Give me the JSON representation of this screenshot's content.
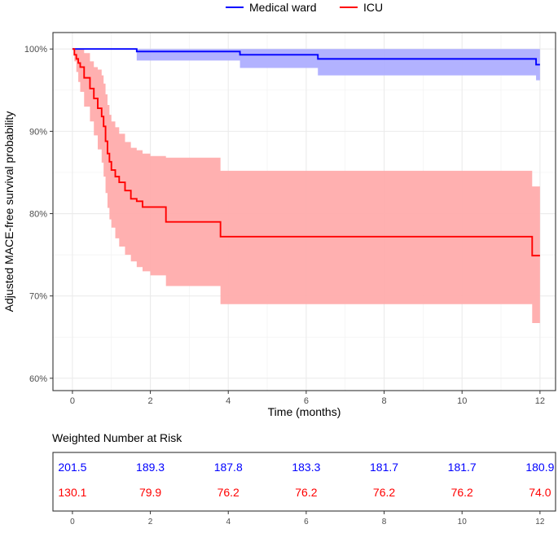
{
  "chart_data": [
    {
      "type": "line",
      "chart_style": "kaplan-meier step curves with shaded confidence bands",
      "xlabel": "Time (months)",
      "ylabel": "Adjusted MACE-free survival probability",
      "xlim": [
        -0.5,
        12.4
      ],
      "ylim": [
        0.585,
        1.02
      ],
      "x_ticks": [
        0,
        2,
        4,
        6,
        8,
        10,
        12
      ],
      "x_tick_labels": [
        "0",
        "2",
        "4",
        "6",
        "8",
        "10",
        "12"
      ],
      "y_ticks": [
        0.6,
        0.7,
        0.8,
        0.9,
        1.0
      ],
      "y_tick_labels": [
        "60%",
        "70%",
        "80%",
        "90%",
        "100%"
      ],
      "grid": true,
      "legend_position": "top",
      "series": [
        {
          "name": "Medical ward",
          "color": "#0000ff",
          "band_color": "#aeaeff",
          "x": [
            0,
            1.65,
            4.3,
            6.3,
            11.9,
            12.0
          ],
          "y": [
            1.0,
            0.997,
            0.993,
            0.988,
            0.981,
            0.981
          ],
          "lower": [
            1.0,
            0.986,
            0.977,
            0.968,
            0.962,
            0.962
          ],
          "upper": [
            1.0,
            1.0,
            1.0,
            1.0,
            1.0,
            1.0
          ]
        },
        {
          "name": "ICU",
          "color": "#ff0000",
          "band_color": "#ffacac",
          "x": [
            0,
            0.05,
            0.1,
            0.15,
            0.2,
            0.3,
            0.45,
            0.55,
            0.65,
            0.75,
            0.8,
            0.85,
            0.9,
            0.95,
            1.0,
            1.1,
            1.2,
            1.35,
            1.5,
            1.65,
            1.8,
            2.0,
            2.4,
            3.8,
            11.8,
            12.0
          ],
          "y": [
            1.0,
            0.993,
            0.988,
            0.983,
            0.978,
            0.965,
            0.952,
            0.94,
            0.928,
            0.918,
            0.906,
            0.888,
            0.873,
            0.863,
            0.853,
            0.845,
            0.838,
            0.828,
            0.818,
            0.815,
            0.808,
            0.808,
            0.79,
            0.772,
            0.749,
            0.749
          ],
          "lower": [
            1.0,
            0.985,
            0.972,
            0.96,
            0.948,
            0.93,
            0.912,
            0.895,
            0.878,
            0.862,
            0.845,
            0.825,
            0.807,
            0.793,
            0.783,
            0.77,
            0.76,
            0.75,
            0.742,
            0.735,
            0.73,
            0.725,
            0.712,
            0.69,
            0.667,
            0.667
          ],
          "upper": [
            1.0,
            1.0,
            1.0,
            1.0,
            1.0,
            0.995,
            0.985,
            0.978,
            0.975,
            0.968,
            0.958,
            0.945,
            0.932,
            0.92,
            0.912,
            0.905,
            0.897,
            0.887,
            0.88,
            0.877,
            0.873,
            0.87,
            0.868,
            0.852,
            0.833,
            0.833
          ]
        }
      ]
    },
    {
      "type": "table",
      "title": "Weighted Number at Risk",
      "x": [
        0,
        2,
        4,
        6,
        8,
        10,
        12
      ],
      "x_tick_labels": [
        "0",
        "2",
        "4",
        "6",
        "8",
        "10",
        "12"
      ],
      "rows": [
        {
          "name": "Medical ward",
          "color": "#0000ff",
          "values": [
            "201.5",
            "189.3",
            "187.8",
            "183.3",
            "181.7",
            "181.7",
            "180.9"
          ]
        },
        {
          "name": "ICU",
          "color": "#ff0000",
          "values": [
            "130.1",
            "79.9",
            "76.2",
            "76.2",
            "76.2",
            "76.2",
            "74.0"
          ]
        }
      ]
    }
  ]
}
